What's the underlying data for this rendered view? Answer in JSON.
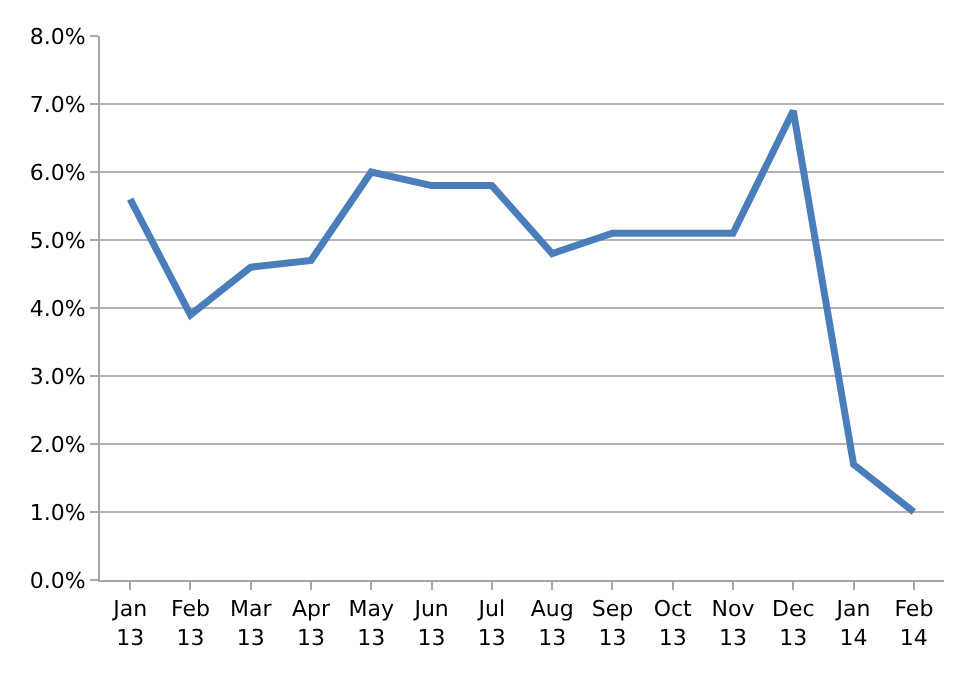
{
  "chart_data": {
    "type": "line",
    "categories": [
      "Jan 13",
      "Feb 13",
      "Mar 13",
      "Apr 13",
      "May 13",
      "Jun 13",
      "Jul 13",
      "Aug 13",
      "Sep 13",
      "Oct 13",
      "Nov 13",
      "Dec 13",
      "Jan 14",
      "Feb 14"
    ],
    "series": [
      {
        "color": "#4a7ebb",
        "values": [
          5.6,
          3.9,
          4.6,
          4.7,
          6.0,
          5.8,
          5.8,
          4.8,
          5.1,
          5.1,
          5.1,
          6.9,
          1.7,
          1.0
        ]
      }
    ],
    "ylim": [
      0,
      8
    ],
    "yticks": [
      {
        "value": 0,
        "label": "0.0%"
      },
      {
        "value": 1,
        "label": "1.0%"
      },
      {
        "value": 2,
        "label": "2.0%"
      },
      {
        "value": 3,
        "label": "3.0%"
      },
      {
        "value": 4,
        "label": "4.0%"
      },
      {
        "value": 5,
        "label": "5.0%"
      },
      {
        "value": 6,
        "label": "6.0%"
      },
      {
        "value": 7,
        "label": "7.0%"
      },
      {
        "value": 8,
        "label": "8.0%"
      }
    ],
    "grid": "y",
    "marker": "none",
    "line_style": "solid"
  }
}
